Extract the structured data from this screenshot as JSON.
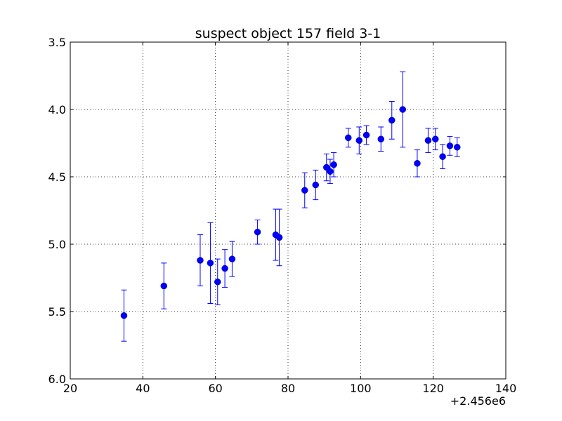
{
  "chart_data": {
    "type": "scatter",
    "title": "suspect object 157 field 3-1",
    "xlabel": "",
    "ylabel": "",
    "x_offset_label": "+2.456e6",
    "xlim": [
      20,
      140
    ],
    "ylim": [
      6.0,
      3.5
    ],
    "y_inverted": true,
    "grid": true,
    "grid_style": "dotted",
    "x_ticks": [
      20,
      40,
      60,
      80,
      100,
      120,
      140
    ],
    "x_tick_labels": [
      "20",
      "40",
      "60",
      "80",
      "100",
      "120",
      "140"
    ],
    "y_ticks": [
      3.5,
      4.0,
      4.5,
      5.0,
      5.5,
      6.0
    ],
    "y_tick_labels": [
      "3.5",
      "4.0",
      "4.5",
      "5.0",
      "5.5",
      "6.0"
    ],
    "marker_color": "#0000ff",
    "series": [
      {
        "points": [
          {
            "x": 34.8,
            "y": 5.53,
            "err": 0.19
          },
          {
            "x": 45.8,
            "y": 5.31,
            "err": 0.17
          },
          {
            "x": 55.8,
            "y": 5.12,
            "err": 0.19
          },
          {
            "x": 58.6,
            "y": 5.14,
            "err": 0.3
          },
          {
            "x": 60.6,
            "y": 5.28,
            "err": 0.17
          },
          {
            "x": 62.6,
            "y": 5.18,
            "err": 0.14
          },
          {
            "x": 64.6,
            "y": 5.11,
            "err": 0.13
          },
          {
            "x": 71.6,
            "y": 4.91,
            "err": 0.09
          },
          {
            "x": 76.6,
            "y": 4.93,
            "err": 0.19
          },
          {
            "x": 77.6,
            "y": 4.95,
            "err": 0.21
          },
          {
            "x": 84.6,
            "y": 4.6,
            "err": 0.13
          },
          {
            "x": 87.6,
            "y": 4.56,
            "err": 0.11
          },
          {
            "x": 90.6,
            "y": 4.43,
            "err": 0.1
          },
          {
            "x": 91.6,
            "y": 4.46,
            "err": 0.09
          },
          {
            "x": 92.6,
            "y": 4.41,
            "err": 0.09
          },
          {
            "x": 96.6,
            "y": 4.21,
            "err": 0.07
          },
          {
            "x": 99.6,
            "y": 4.23,
            "err": 0.1
          },
          {
            "x": 101.6,
            "y": 4.19,
            "err": 0.07
          },
          {
            "x": 105.6,
            "y": 4.22,
            "err": 0.09
          },
          {
            "x": 108.6,
            "y": 4.08,
            "err": 0.14
          },
          {
            "x": 111.6,
            "y": 4.0,
            "err": 0.28
          },
          {
            "x": 115.6,
            "y": 4.4,
            "err": 0.1
          },
          {
            "x": 118.6,
            "y": 4.23,
            "err": 0.09
          },
          {
            "x": 120.6,
            "y": 4.22,
            "err": 0.08
          },
          {
            "x": 122.6,
            "y": 4.35,
            "err": 0.09
          },
          {
            "x": 124.6,
            "y": 4.27,
            "err": 0.07
          },
          {
            "x": 126.6,
            "y": 4.28,
            "err": 0.07
          }
        ]
      }
    ]
  }
}
